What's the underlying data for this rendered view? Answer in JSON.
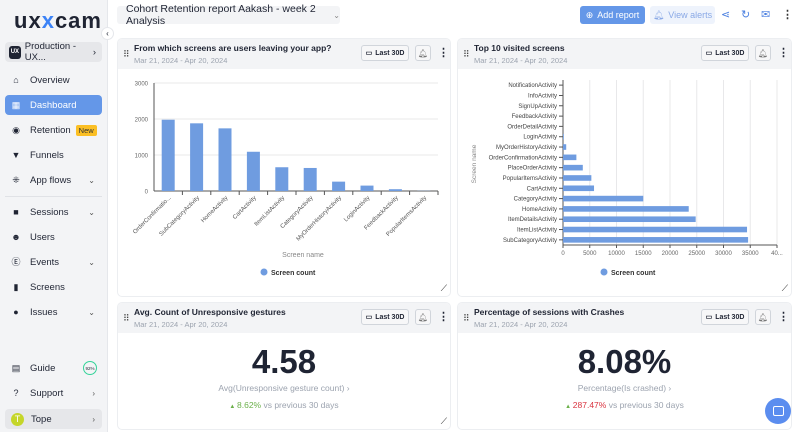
{
  "sidebar": {
    "logo": {
      "a": "ux",
      "b": "x",
      "c": "cam"
    },
    "project": "Production - UX...",
    "items": [
      {
        "label": "Overview",
        "icon": "home-icon"
      },
      {
        "label": "Dashboard",
        "icon": "dashboard-icon",
        "active": true
      },
      {
        "label": "Retention",
        "icon": "retention-icon",
        "badge": "New"
      },
      {
        "label": "Funnels",
        "icon": "funnel-icon"
      },
      {
        "label": "App flows",
        "icon": "flows-icon"
      },
      {
        "label": "Sessions",
        "icon": "video-icon"
      },
      {
        "label": "Users",
        "icon": "users-icon"
      },
      {
        "label": "Events",
        "icon": "events-icon"
      },
      {
        "label": "Screens",
        "icon": "screen-icon"
      },
      {
        "label": "Issues",
        "icon": "issues-icon"
      }
    ],
    "guide": {
      "label": "Guide",
      "progress": "92%"
    },
    "support": "Support",
    "user": {
      "initial": "T",
      "name": "Tope"
    }
  },
  "header": {
    "report": "Cohort Retention report Aakash - week 2 Analysis",
    "add_report": "Add report",
    "view_alerts": "View alerts"
  },
  "colors": {
    "accent": "#6497e8",
    "bar": "#6f9ce0",
    "up": "#6bb04a",
    "red": "#d9333f"
  },
  "cards": [
    {
      "title": "From which screens are users leaving your app?",
      "date": "Mar 21, 2024 - Apr 20, 2024",
      "range": "Last 30D"
    },
    {
      "title": "Top 10 visited screens",
      "date": "Mar 21, 2024 - Apr 20, 2024",
      "range": "Last 30D"
    },
    {
      "title": "Avg. Count of Unresponsive gestures",
      "date": "Mar 21, 2024 - Apr 20, 2024",
      "range": "Last 30D",
      "value": "4.58",
      "metric": "Avg(Unresponsive gesture count) ›",
      "change": "8.62%",
      "compare": " vs previous 30 days"
    },
    {
      "title": "Percentage of sessions with Crashes",
      "date": "Mar 21, 2024 - Apr 20, 2024",
      "range": "Last 30D",
      "value": "8.08%",
      "metric": "Percentage(Is crashed) ›",
      "change": "287.47%",
      "compare": " vs previous 30 days"
    }
  ],
  "chart_data": [
    {
      "type": "bar",
      "xlabel": "Screen name",
      "ylabel": "",
      "ylim": [
        0,
        3000
      ],
      "yticks": [
        "0",
        "1000",
        "2000",
        "3000"
      ],
      "grid": true,
      "legend": "bottom",
      "categories": [
        "OrderConfirmatio...",
        "SubCategoryActivity",
        "HomeActivity",
        "CartActivity",
        "ItemListActivity",
        "CategoryActivity",
        "MyOrderHistoryActivity",
        "LoginActivity",
        "FeedbackActivity",
        "PopularItemsActivity"
      ],
      "series": [
        {
          "name": "Screen count",
          "values": [
            1980,
            1880,
            1740,
            1090,
            660,
            640,
            260,
            150,
            50,
            5
          ]
        }
      ]
    },
    {
      "type": "bar",
      "orientation": "horizontal",
      "xlabel": "",
      "ylabel": "Screen name",
      "xlim": [
        0,
        40000
      ],
      "xticks": [
        "0",
        "5000",
        "10000",
        "15000",
        "20000",
        "25000",
        "30000",
        "35000",
        "40..."
      ],
      "grid": true,
      "legend": "bottom",
      "categories": [
        "NotificationActivity",
        "InfoActivity",
        "SignUpActivity",
        "FeedbackActivity",
        "OrderDetailActivity",
        "LoginActivity",
        "MyOrderHistoryActivity",
        "OrderConfirmationActivity",
        "PlaceOrderActivity",
        "PopularItemsActivity",
        "CartActivity",
        "CategoryActivity",
        "HomeActivity",
        "ItemDetailsActivity",
        "ItemListActivity",
        "SubCategoryActivity"
      ],
      "series": [
        {
          "name": "Screen count",
          "values": [
            0,
            0,
            0,
            0,
            0,
            150,
            600,
            2500,
            3700,
            5300,
            5800,
            15000,
            23500,
            24800,
            34400,
            34600
          ]
        }
      ]
    }
  ]
}
